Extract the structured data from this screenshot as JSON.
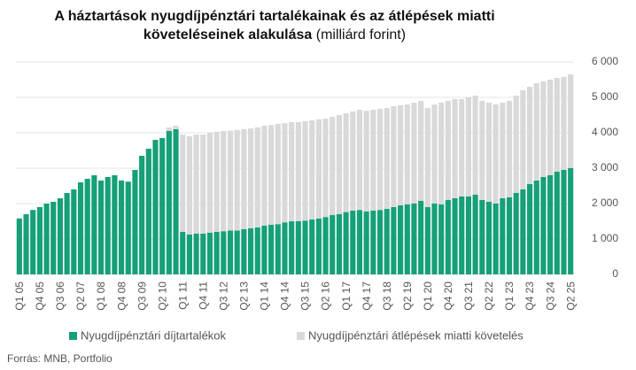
{
  "chart_data": {
    "type": "stacked_bar",
    "title": "A háztartások nyugdíjpénztári tartalékainak és az átlépések miatti követeléseinek alakulása",
    "unit": "(milliárd forint)",
    "source": "Forrás: MNB, Portfolio",
    "categories": [
      "Q1 05",
      null,
      null,
      "Q4 05",
      null,
      null,
      "Q3 06",
      null,
      null,
      "Q2 07",
      null,
      null,
      "Q1 08",
      null,
      null,
      "Q4 08",
      null,
      null,
      "Q3 09",
      null,
      null,
      "Q2 10",
      null,
      null,
      "Q1 11",
      null,
      null,
      "Q4 11",
      null,
      null,
      "Q3 12",
      null,
      null,
      "Q2 13",
      null,
      null,
      "Q1 14",
      null,
      null,
      "Q4 14",
      null,
      null,
      "Q3 15",
      null,
      null,
      "Q2 16",
      null,
      null,
      "Q1 17",
      null,
      null,
      "Q4 17",
      null,
      null,
      "Q3 18",
      null,
      null,
      "Q2 19",
      null,
      null,
      "Q1 20",
      null,
      null,
      "Q4 20",
      null,
      null,
      "Q3 21",
      null,
      null,
      "Q2 22",
      null,
      null,
      "Q1 23",
      null,
      null,
      "Q4 23",
      null,
      null,
      "Q3 24",
      null,
      null,
      "Q2 25"
    ],
    "series": [
      {
        "name": "Nyugdíjpénztári díjtartalékok",
        "color": "#16a078",
        "values": [
          1580,
          1700,
          1820,
          1900,
          2000,
          2050,
          2150,
          2300,
          2400,
          2600,
          2700,
          2800,
          2650,
          2750,
          2800,
          2650,
          2620,
          2950,
          3350,
          3550,
          3800,
          3850,
          4050,
          4100,
          1200,
          1130,
          1150,
          1150,
          1180,
          1200,
          1220,
          1240,
          1240,
          1280,
          1300,
          1330,
          1380,
          1400,
          1420,
          1470,
          1500,
          1500,
          1520,
          1550,
          1580,
          1620,
          1680,
          1700,
          1760,
          1800,
          1820,
          1780,
          1800,
          1820,
          1850,
          1900,
          1950,
          1980,
          2000,
          2080,
          1900,
          2000,
          1980,
          2100,
          2150,
          2200,
          2200,
          2250,
          2100,
          2050,
          2000,
          2150,
          2180,
          2300,
          2400,
          2550,
          2650,
          2750,
          2800,
          2900,
          2950,
          3000
        ]
      },
      {
        "name": "Nyugdíjpénztári átlépések miatti követelés",
        "color": "#d9d9d9",
        "values": [
          0,
          0,
          0,
          0,
          0,
          0,
          0,
          0,
          0,
          0,
          0,
          0,
          0,
          0,
          0,
          0,
          0,
          0,
          0,
          0,
          0,
          0,
          100,
          100,
          2750,
          2770,
          2800,
          2800,
          2820,
          2830,
          2830,
          2820,
          2840,
          2820,
          2820,
          2820,
          2820,
          2820,
          2830,
          2800,
          2800,
          2800,
          2810,
          2800,
          2800,
          2780,
          2770,
          2800,
          2790,
          2800,
          2830,
          2840,
          2850,
          2860,
          2850,
          2850,
          2830,
          2820,
          2850,
          2820,
          2800,
          2800,
          2870,
          2800,
          2800,
          2750,
          2800,
          2800,
          2800,
          2800,
          2800,
          2700,
          2720,
          2750,
          2800,
          2750,
          2750,
          2700,
          2700,
          2650,
          2630,
          2650
        ]
      }
    ],
    "ylim": [
      0,
      6000
    ],
    "yticks": [
      0,
      {
        "value": 1000,
        "label": "1 000"
      },
      {
        "value": 2000,
        "label": "2 000"
      },
      {
        "value": 3000,
        "label": "3 000"
      },
      {
        "value": 4000,
        "label": "4 000"
      },
      {
        "value": 5000,
        "label": "5 000"
      },
      {
        "value": 6000,
        "label": "6 000"
      }
    ],
    "grid": true
  }
}
